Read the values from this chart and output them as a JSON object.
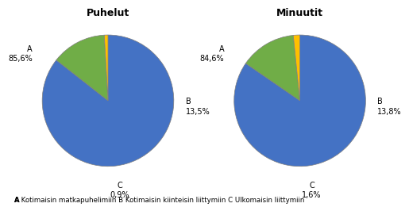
{
  "chart1_title": "Puhelut",
  "chart2_title": "Minuutit",
  "chart1_values": [
    85.6,
    13.5,
    0.9
  ],
  "chart2_values": [
    84.6,
    13.8,
    1.6
  ],
  "labels": [
    "A",
    "B",
    "C"
  ],
  "colors": [
    "#4472C4",
    "#70AD47",
    "#FFC000"
  ],
  "legend_text": "A Kotimaisin matkapuhelimiin B Kotimaisin kiinteisin liittymiin C Ulkomaisin liittymiin",
  "background_color": "#ffffff",
  "edge_color": "#7f7f7f",
  "startangle": 90,
  "chart1_labels_A": "A\n85,6%",
  "chart1_labels_B": "B\n13,5%",
  "chart1_labels_C": "C\n0,9%",
  "chart2_labels_A": "A\n84,6%",
  "chart2_labels_B": "B\n13,8%",
  "chart2_labels_C": "C\n1,6%"
}
